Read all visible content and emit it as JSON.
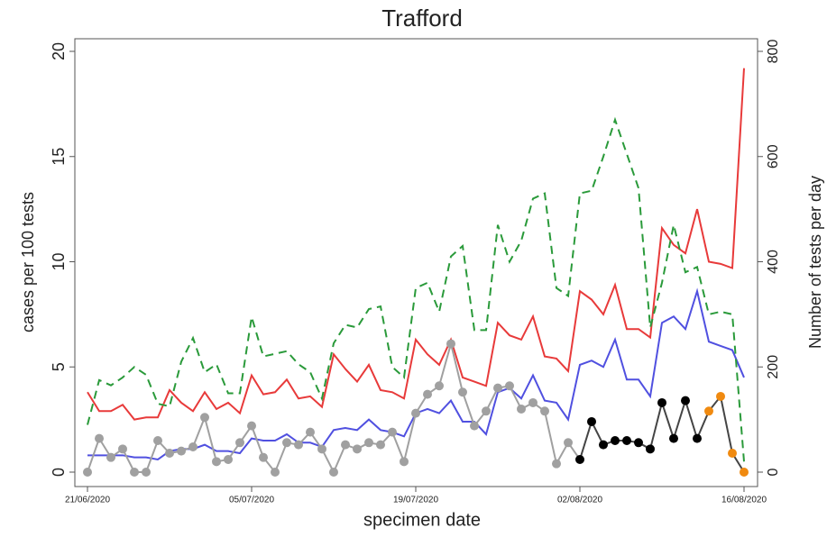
{
  "chart_data": {
    "type": "line",
    "title": "Trafford",
    "xlabel": "specimen date",
    "ylabel": "cases per 100 tests",
    "y2label": "Number of tests per day",
    "x": [
      "21/06/2020",
      "22/06/2020",
      "23/06/2020",
      "24/06/2020",
      "25/06/2020",
      "26/06/2020",
      "27/06/2020",
      "28/06/2020",
      "29/06/2020",
      "30/06/2020",
      "01/07/2020",
      "02/07/2020",
      "03/07/2020",
      "04/07/2020",
      "05/07/2020",
      "06/07/2020",
      "07/07/2020",
      "08/07/2020",
      "09/07/2020",
      "10/07/2020",
      "11/07/2020",
      "12/07/2020",
      "13/07/2020",
      "14/07/2020",
      "15/07/2020",
      "16/07/2020",
      "17/07/2020",
      "18/07/2020",
      "19/07/2020",
      "20/07/2020",
      "21/07/2020",
      "22/07/2020",
      "23/07/2020",
      "24/07/2020",
      "25/07/2020",
      "26/07/2020",
      "27/07/2020",
      "28/07/2020",
      "29/07/2020",
      "30/07/2020",
      "31/07/2020",
      "01/08/2020",
      "02/08/2020",
      "03/08/2020",
      "04/08/2020",
      "05/08/2020",
      "06/08/2020",
      "07/08/2020",
      "08/08/2020",
      "09/08/2020",
      "10/08/2020",
      "11/08/2020",
      "12/08/2020",
      "13/08/2020",
      "14/08/2020",
      "15/08/2020",
      "16/08/2020"
    ],
    "xticks": [
      "21/06/2020",
      "05/07/2020",
      "19/07/2020",
      "02/08/2020",
      "16/08/2020"
    ],
    "ylim": [
      0,
      20
    ],
    "yticks": [
      0,
      5,
      10,
      15,
      20
    ],
    "y2lim": [
      0,
      800
    ],
    "y2ticks": [
      0,
      200,
      400,
      600,
      800
    ],
    "series": [
      {
        "color": "#e83a3a",
        "values": [
          3.8,
          2.9,
          2.9,
          3.2,
          2.5,
          2.6,
          2.6,
          3.9,
          3.3,
          2.9,
          3.8,
          3.0,
          3.3,
          2.8,
          4.6,
          3.7,
          3.8,
          4.4,
          3.5,
          3.6,
          3.1,
          5.6,
          4.9,
          4.3,
          5.1,
          3.9,
          3.8,
          3.5,
          6.3,
          5.6,
          5.1,
          6.3,
          4.5,
          4.3,
          4.1,
          7.1,
          6.5,
          6.3,
          7.4,
          5.5,
          5.4,
          4.8,
          8.6,
          8.2,
          7.5,
          8.9,
          6.8,
          6.8,
          6.4,
          11.6,
          10.8,
          10.4,
          12.5,
          10.0,
          9.9,
          9.7,
          19.2
        ]
      },
      {
        "color": "#5050e0",
        "values": [
          0.8,
          0.8,
          0.8,
          0.8,
          0.7,
          0.7,
          0.6,
          1.0,
          1.1,
          1.1,
          1.3,
          1.0,
          1.0,
          0.9,
          1.6,
          1.5,
          1.5,
          1.8,
          1.4,
          1.4,
          1.2,
          2.0,
          2.1,
          2.0,
          2.5,
          2.0,
          1.9,
          1.7,
          2.8,
          3.0,
          2.8,
          3.4,
          2.4,
          2.4,
          1.8,
          3.8,
          4.0,
          3.5,
          4.6,
          3.4,
          3.3,
          2.5,
          5.1,
          5.3,
          5.0,
          6.3,
          4.4,
          4.4,
          3.6,
          7.1,
          7.4,
          6.8,
          8.6,
          6.2,
          6.0,
          5.8,
          4.5
        ]
      },
      {
        "color": "#2a9a3a",
        "dashed": true,
        "axis": "y2",
        "values": [
          90,
          175,
          165,
          180,
          200,
          185,
          130,
          125,
          210,
          255,
          190,
          205,
          150,
          150,
          295,
          220,
          225,
          230,
          205,
          190,
          140,
          245,
          280,
          275,
          310,
          315,
          200,
          180,
          350,
          360,
          305,
          410,
          430,
          270,
          270,
          470,
          400,
          440,
          520,
          530,
          350,
          335,
          530,
          535,
          600,
          670,
          605,
          540,
          275,
          360,
          470,
          380,
          390,
          300,
          305,
          300,
          20
        ]
      },
      {
        "markers": true,
        "colors": [
          "#a0a0a0",
          "#a0a0a0",
          "#a0a0a0",
          "#a0a0a0",
          "#a0a0a0",
          "#a0a0a0",
          "#a0a0a0",
          "#a0a0a0",
          "#a0a0a0",
          "#a0a0a0",
          "#a0a0a0",
          "#a0a0a0",
          "#a0a0a0",
          "#a0a0a0",
          "#a0a0a0",
          "#a0a0a0",
          "#a0a0a0",
          "#a0a0a0",
          "#a0a0a0",
          "#a0a0a0",
          "#a0a0a0",
          "#a0a0a0",
          "#a0a0a0",
          "#a0a0a0",
          "#a0a0a0",
          "#a0a0a0",
          "#a0a0a0",
          "#a0a0a0",
          "#a0a0a0",
          "#a0a0a0",
          "#a0a0a0",
          "#a0a0a0",
          "#a0a0a0",
          "#a0a0a0",
          "#a0a0a0",
          "#a0a0a0",
          "#a0a0a0",
          "#a0a0a0",
          "#a0a0a0",
          "#a0a0a0",
          "#a0a0a0",
          "#a0a0a0",
          "#000000",
          "#000000",
          "#000000",
          "#000000",
          "#000000",
          "#000000",
          "#000000",
          "#000000",
          "#000000",
          "#000000",
          "#000000",
          "#f08a10",
          "#f08a10",
          "#f08a10",
          "#f08a10"
        ],
        "values": [
          0,
          1.6,
          0.7,
          1.1,
          0,
          0,
          1.5,
          0.9,
          1.0,
          1.2,
          2.6,
          0.5,
          0.6,
          1.4,
          2.2,
          0.7,
          0,
          1.4,
          1.3,
          1.9,
          1.1,
          0,
          1.3,
          1.1,
          1.4,
          1.3,
          1.9,
          0.5,
          2.8,
          3.7,
          4.1,
          6.1,
          3.8,
          2.2,
          2.9,
          4.0,
          4.1,
          3.0,
          3.3,
          2.9,
          0.4,
          1.4,
          0.6,
          2.4,
          1.3,
          1.5,
          1.5,
          1.4,
          1.1,
          3.3,
          1.6,
          3.4,
          1.6,
          2.9,
          3.6,
          0.9,
          0.0
        ]
      }
    ]
  }
}
